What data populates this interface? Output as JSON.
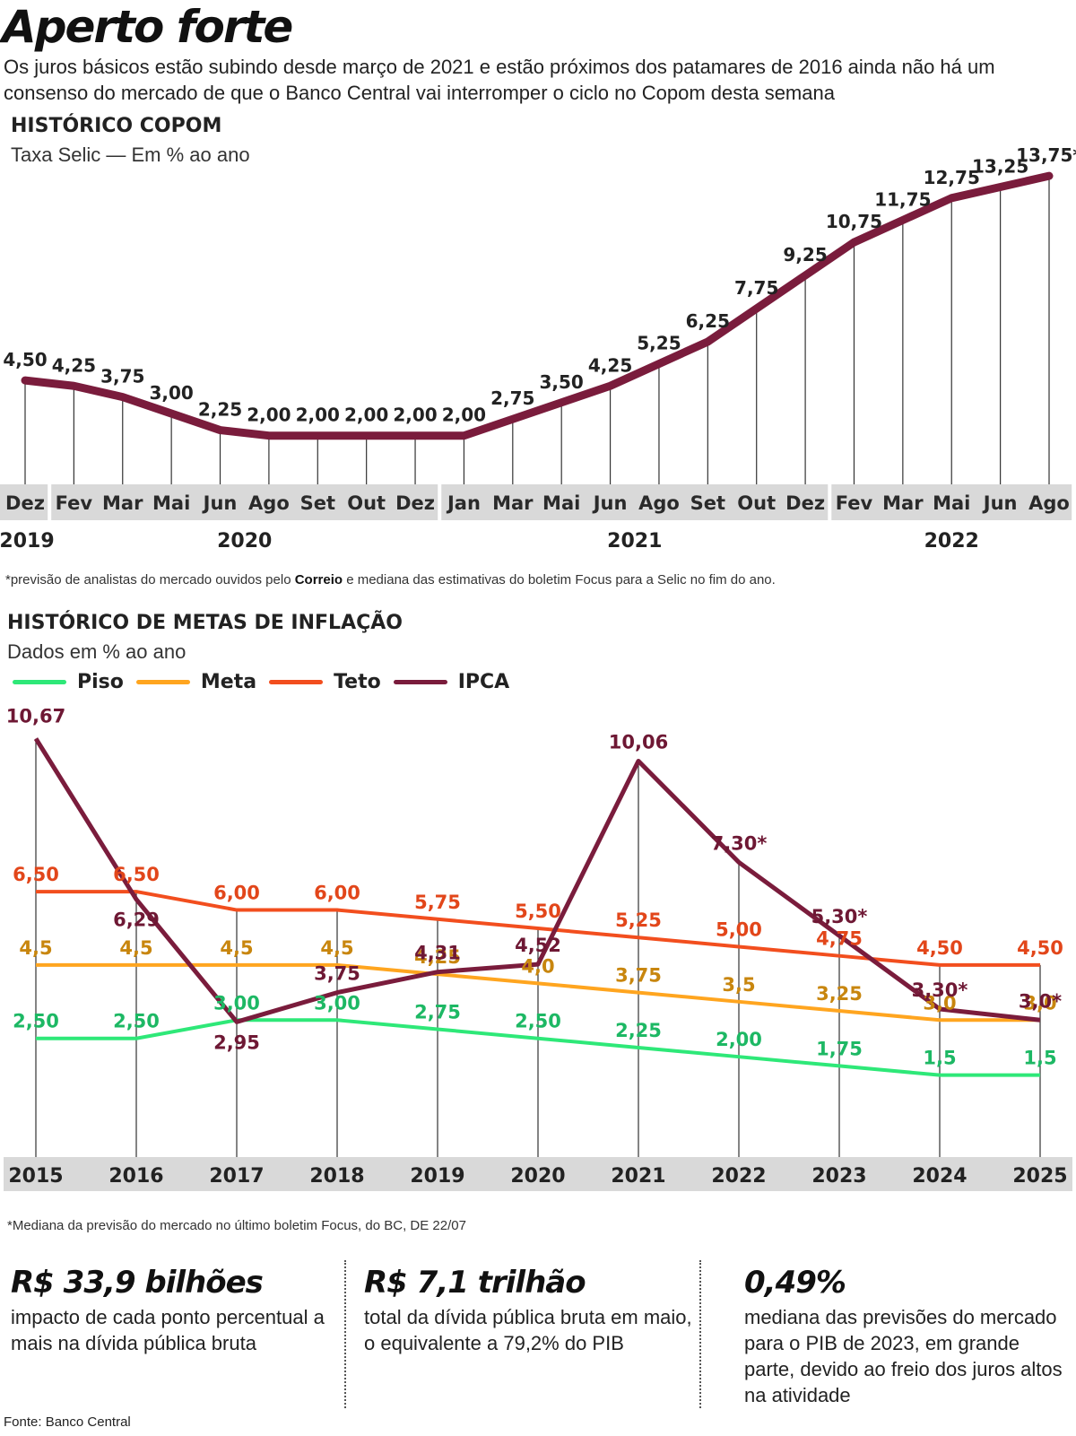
{
  "title": "Aperto forte",
  "subtitle": "Os juros básicos estão subindo desde março de 2021 e estão próximos dos patamares de 2016 ainda não há um consenso do mercado de que o Banco Central vai interromper o ciclo no Copom desta semana",
  "copom": {
    "title": "HISTÓRICO COPOM",
    "subtitle": "Taxa Selic — Em % ao ano",
    "note_prefix": "*previsão de analistas do mercado ouvidos pelo ",
    "note_bold": "Correio",
    "note_suffix": " e mediana das estimativas do boletim Focus para a Selic no fim do ano."
  },
  "metas": {
    "title": "HISTÓRICO DE METAS DE INFLAÇÃO",
    "subtitle": "Dados em % ao ano",
    "note": "*Mediana da previsão do mercado no último boletim Focus, do BC, DE 22/07"
  },
  "chart_data": [
    {
      "type": "line",
      "title": "HISTÓRICO COPOM",
      "subtitle": "Taxa Selic — Em % ao ano",
      "categories": [
        "Dez",
        "Fev",
        "Mar",
        "Mai",
        "Jun",
        "Ago",
        "Set",
        "Out",
        "Dez",
        "Jan",
        "Mar",
        "Mai",
        "Jun",
        "Ago",
        "Set",
        "Out",
        "Dez",
        "Fev",
        "Mar",
        "Mai",
        "Jun",
        "Ago"
      ],
      "year_groups": [
        {
          "label": "2019",
          "start": 0,
          "end": 0
        },
        {
          "label": "2020",
          "start": 1,
          "end": 8
        },
        {
          "label": "2021",
          "start": 9,
          "end": 16
        },
        {
          "label": "2022",
          "start": 17,
          "end": 21
        }
      ],
      "values": [
        4.5,
        4.25,
        3.75,
        3.0,
        2.25,
        2.0,
        2.0,
        2.0,
        2.0,
        2.0,
        2.75,
        3.5,
        4.25,
        5.25,
        6.25,
        7.75,
        9.25,
        10.75,
        11.75,
        12.75,
        13.25,
        13.75
      ],
      "data_labels": [
        "4,50",
        "4,25",
        "3,75",
        "3,00",
        "2,25",
        "2,00",
        "2,00",
        "2,00",
        "2,00",
        "2,00",
        "2,75",
        "3,50",
        "4,25",
        "5,25",
        "6,25",
        "7,75",
        "9,25",
        "10,75",
        "11,75",
        "12,75",
        "13,25",
        "13,75*"
      ],
      "ylim": [
        0,
        14
      ],
      "grid": false,
      "color": "#7a1c3c"
    },
    {
      "type": "line",
      "title": "HISTÓRICO DE METAS DE INFLAÇÃO",
      "subtitle": "Dados em % ao ano",
      "x": [
        "2015",
        "2016",
        "2017",
        "2018",
        "2019",
        "2020",
        "2021",
        "2022",
        "2023",
        "2024",
        "2025"
      ],
      "legend_placement": "top-left",
      "ylim": [
        0,
        11
      ],
      "grid": false,
      "series": [
        {
          "name": "Piso",
          "color": "#2ee878",
          "label_color": "#1db864",
          "values": [
            2.5,
            2.5,
            3.0,
            3.0,
            2.75,
            2.5,
            2.25,
            2.0,
            1.75,
            1.5,
            1.5
          ],
          "labels": [
            "2,50",
            "2,50",
            "3,00",
            "3,00",
            "2,75",
            "2,50",
            "2,25",
            "2,00",
            "1,75",
            "1,5",
            "1,5"
          ]
        },
        {
          "name": "Meta",
          "color": "#ffa51f",
          "label_color": "#c8860e",
          "values": [
            4.5,
            4.5,
            4.5,
            4.5,
            4.25,
            4.0,
            3.75,
            3.5,
            3.25,
            3.0,
            3.0
          ],
          "labels": [
            "4,5",
            "4,5",
            "4,5",
            "4,5",
            "4,25",
            "4,0",
            "3,75",
            "3,5",
            "3,25",
            "3,0",
            "3,0"
          ]
        },
        {
          "name": "Teto",
          "color": "#f24e1e",
          "label_color": "#e2461a",
          "values": [
            6.5,
            6.5,
            6.0,
            6.0,
            5.75,
            5.5,
            5.25,
            5.0,
            4.75,
            4.5,
            4.5
          ],
          "labels": [
            "6,50",
            "6,50",
            "6,00",
            "6,00",
            "5,75",
            "5,50",
            "5,25",
            "5,00",
            "4,75",
            "4,50",
            "4,50"
          ]
        },
        {
          "name": "IPCA",
          "color": "#7a1c3c",
          "label_color": "#6e1834",
          "values": [
            10.67,
            6.29,
            2.95,
            3.75,
            4.31,
            4.52,
            10.06,
            7.3,
            5.3,
            3.3,
            3.0
          ],
          "labels": [
            "10,67",
            "6,29",
            "2,95",
            "3,75",
            "4,31",
            "4,52",
            "10,06",
            "7,30*",
            "5,30*",
            "3,30*",
            "3,0*"
          ]
        }
      ]
    }
  ],
  "stats": [
    {
      "value": "R$ 33,9 bilhões",
      "desc": "impacto de cada ponto percentual a mais na dívida pública bruta"
    },
    {
      "value": "R$ 7,1 trilhão",
      "desc": "total da dívida pública bruta em maio, o equivalente a 79,2% do PIB"
    },
    {
      "value": "0,49%",
      "desc": "mediana das previsões do mercado para o PIB de 2023, em grande parte, devido ao freio dos juros altos na atividade"
    }
  ],
  "source": "Fonte: Banco Central"
}
